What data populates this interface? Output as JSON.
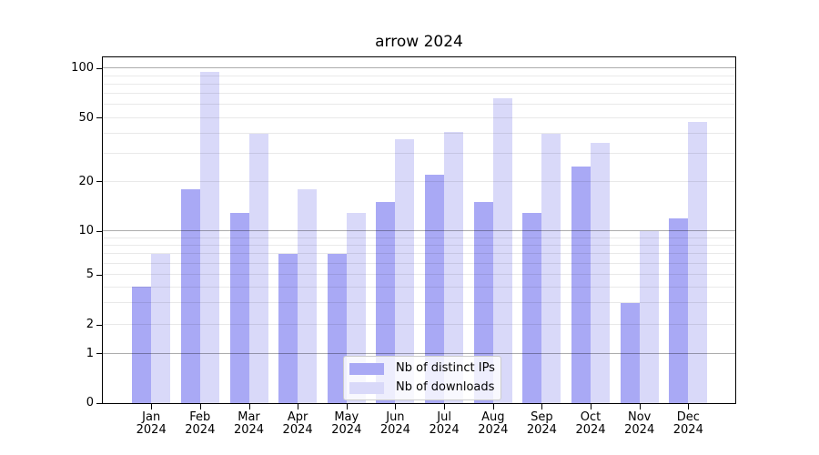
{
  "chart_data": {
    "type": "bar",
    "title": "arrow 2024",
    "x_year": "2024",
    "categories": [
      "Jan",
      "Feb",
      "Mar",
      "Apr",
      "May",
      "Jun",
      "Jul",
      "Aug",
      "Sep",
      "Oct",
      "Nov",
      "Dec"
    ],
    "series": [
      {
        "name": "Nb of distinct IPs",
        "color": "#a9a9f5",
        "values": [
          4,
          18,
          13,
          7,
          7,
          15,
          22,
          15,
          13,
          25,
          3,
          12
        ]
      },
      {
        "name": "Nb of downloads",
        "color": "#d9d9f9",
        "values": [
          7,
          95,
          40,
          18,
          13,
          37,
          41,
          66,
          40,
          35,
          10,
          47
        ]
      }
    ],
    "yticks": [
      0,
      1,
      2,
      5,
      10,
      20,
      50,
      100
    ],
    "grid_major": [
      1,
      10,
      100
    ],
    "grid_minor": [
      2,
      3,
      4,
      5,
      6,
      7,
      8,
      9,
      20,
      30,
      40,
      50,
      60,
      70,
      80,
      90
    ],
    "ylim": [
      0,
      107
    ],
    "yscale": "symlog-like",
    "yscale_anchors": [
      [
        0,
        0
      ],
      [
        1,
        0.1429
      ],
      [
        2,
        0.226
      ],
      [
        5,
        0.3709
      ],
      [
        10,
        0.4967
      ],
      [
        20,
        0.6401
      ],
      [
        50,
        0.8243
      ],
      [
        100,
        0.9678
      ]
    ],
    "grid": "on",
    "legend_position": "lower center"
  }
}
